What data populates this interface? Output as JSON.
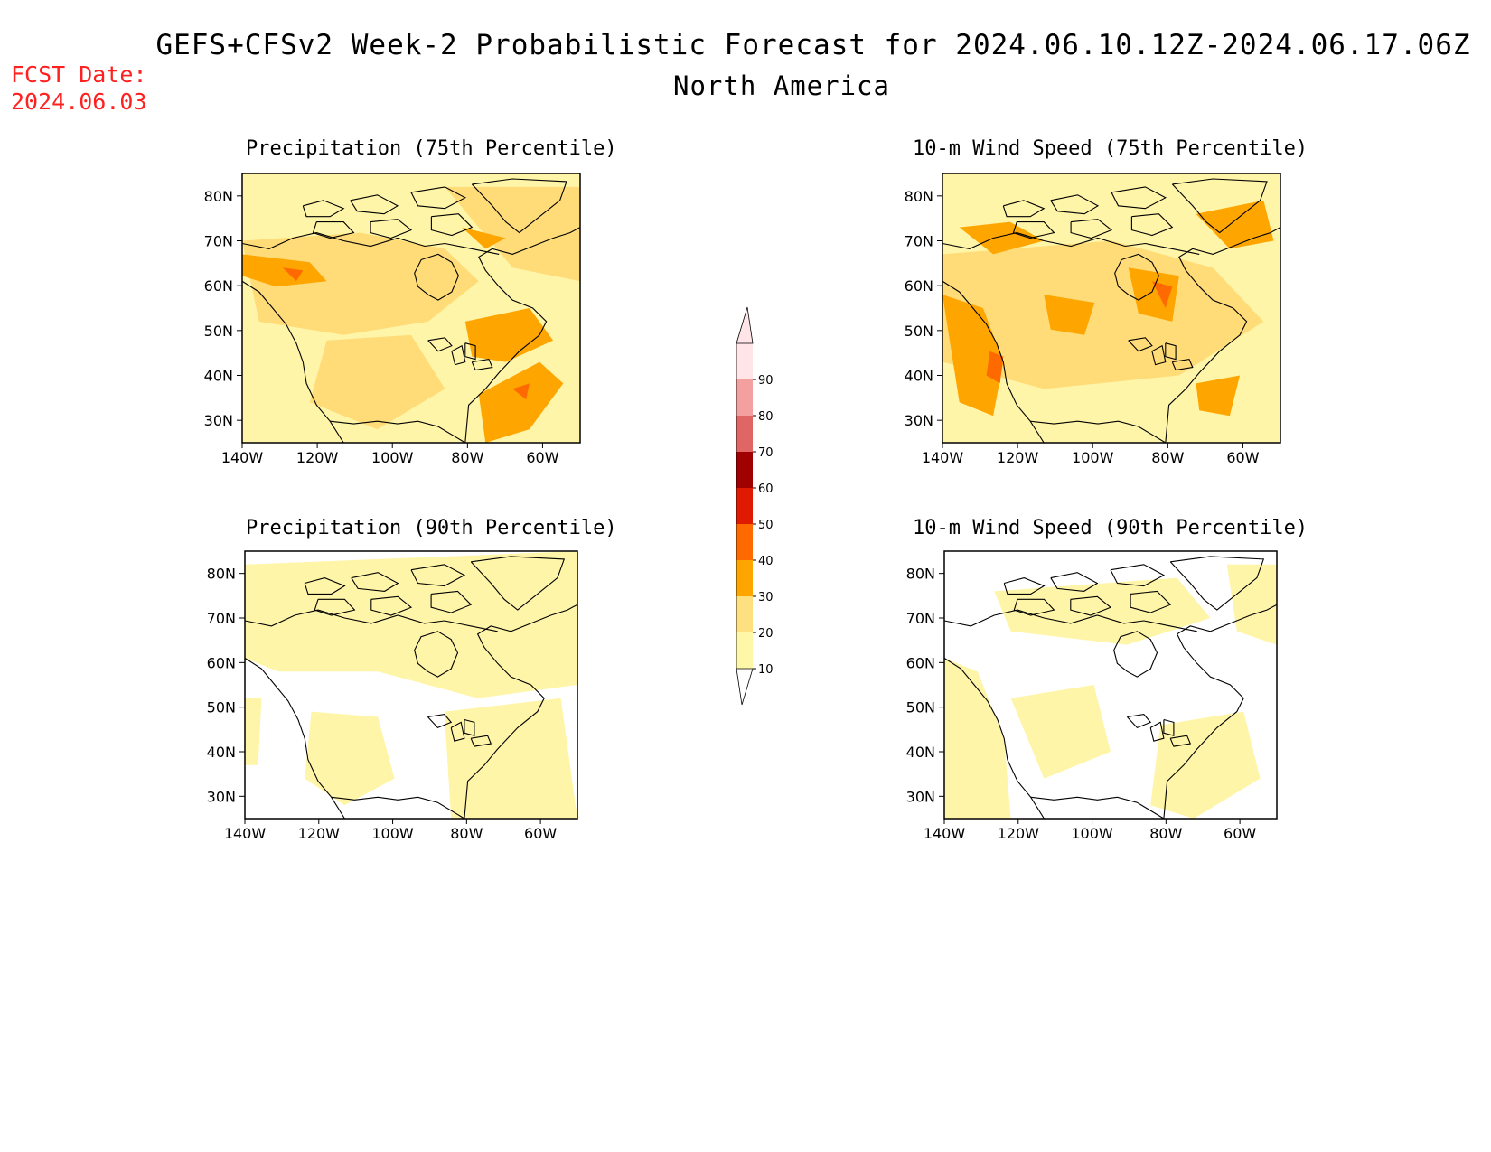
{
  "header": {
    "title": "GEFS+CFSv2 Week-2 Probabilistic Forecast for 2024.06.10.12Z-2024.06.17.06Z",
    "subtitle": "North America",
    "fcst_date_label": "FCST Date:",
    "fcst_date_value": "2024.06.03"
  },
  "map_axes": {
    "lon_ticks": [
      "140W",
      "120W",
      "100W",
      "80W",
      "60W"
    ],
    "lat_ticks": [
      "80N",
      "70N",
      "60N",
      "50N",
      "40N",
      "30N"
    ],
    "lon_range": [
      -140,
      -50
    ],
    "lat_range": [
      25,
      85
    ]
  },
  "panels": [
    {
      "id": "precip-75",
      "title": "Precipitation (75th Percentile)"
    },
    {
      "id": "wind-75",
      "title": "10-m Wind Speed (75th Percentile)"
    },
    {
      "id": "precip-90",
      "title": "Precipitation (90th Percentile)"
    },
    {
      "id": "wind-90",
      "title": "10-m Wind Speed (90th Percentile)"
    }
  ],
  "colorbar": {
    "levels": [
      "10",
      "20",
      "30",
      "40",
      "50",
      "60",
      "70",
      "80",
      "90"
    ],
    "colors": [
      "#fff7a8",
      "#ffe080",
      "#ffa500",
      "#ff6a00",
      "#e01a00",
      "#a00000",
      "#e06666",
      "#f4a0a0",
      "#ffe4e8"
    ]
  },
  "colors": {
    "fcst_date": "#ff2020",
    "shade_light": "#fff5a8",
    "shade_mid": "#ffdc78",
    "shade_orange": "#ffa500",
    "shade_dark_orange": "#ff6a00",
    "shade_red": "#e01a00"
  }
}
